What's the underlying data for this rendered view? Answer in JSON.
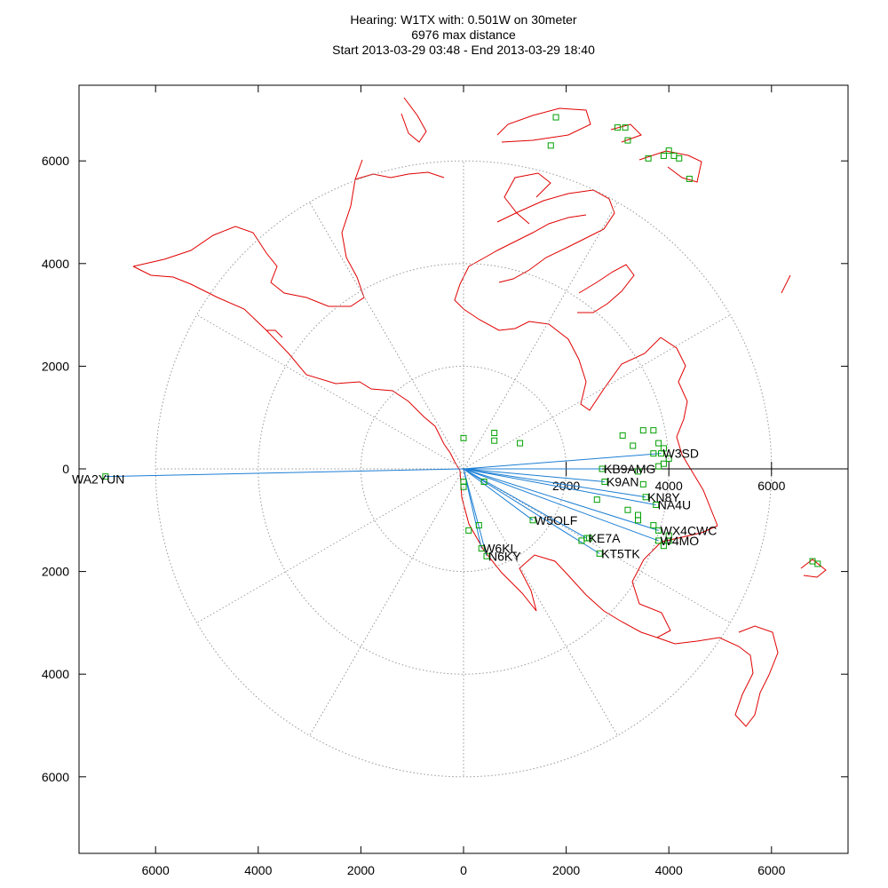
{
  "colors": {
    "coast": "#e00000",
    "path": "#1c7fd4",
    "marker": "#00a000",
    "grid": "#999999",
    "axis": "#000000"
  },
  "chart_data": {
    "type": "scatter",
    "title": "Hearing: W1TX with: 0.501W on 30meter",
    "subtitle": "6976 max distance",
    "subtitle2": "Start 2013-03-29 03:48 - End 2013-03-29 18:40",
    "xlim": [
      -7500,
      7500
    ],
    "ylim": [
      -7500,
      7500
    ],
    "x_ticks": [
      6000,
      4000,
      2000,
      0,
      2000,
      4000,
      6000
    ],
    "y_ticks": [
      6000,
      4000,
      2000,
      0,
      2000,
      4000,
      6000
    ],
    "axis_inner_ticks": [
      "2000",
      "4000",
      "6000"
    ],
    "range_rings": [
      2000,
      4000,
      6000
    ],
    "grid": true,
    "spots": [
      {
        "call": "WA2YUN",
        "x": -6976,
        "y": -150
      },
      {
        "call": "W3SD",
        "x": 3850,
        "y": 300
      },
      {
        "call": "KB9AMG",
        "x": 2700,
        "y": 0
      },
      {
        "call": "K9AN",
        "x": 2750,
        "y": -250
      },
      {
        "call": "KN8Y",
        "x": 3550,
        "y": -550
      },
      {
        "call": "NA4U",
        "x": 3750,
        "y": -700
      },
      {
        "call": "W5OLF",
        "x": 1350,
        "y": -1000
      },
      {
        "call": "WX4CWC",
        "x": 3800,
        "y": -1200
      },
      {
        "call": "W4MO",
        "x": 3800,
        "y": -1400
      },
      {
        "call": "KE7A",
        "x": 2400,
        "y": -1350
      },
      {
        "call": "KT5TK",
        "x": 2650,
        "y": -1650
      },
      {
        "call": "W6KL",
        "x": 350,
        "y": -1550
      },
      {
        "call": "N6KY",
        "x": 450,
        "y": -1700
      }
    ]
  }
}
